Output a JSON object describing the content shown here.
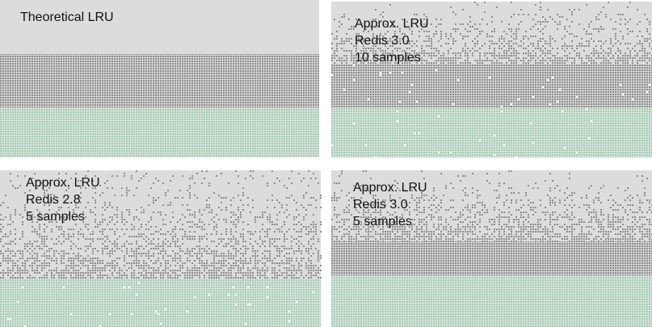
{
  "panels": [
    {
      "lines": [
        "Theoretical LRU"
      ]
    },
    {
      "lines": [
        "Approx. LRU",
        "Redis 3.0",
        "10 samples"
      ]
    },
    {
      "lines": [
        "Approx. LRU",
        "Redis 2.8",
        "5 samples"
      ]
    },
    {
      "lines": [
        "Approx. LRU",
        "Redis 3.0",
        "5 samples"
      ]
    }
  ]
}
